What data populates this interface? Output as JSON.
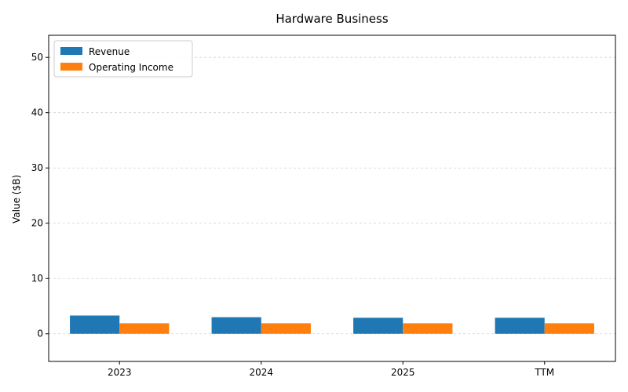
{
  "chart_data": {
    "type": "bar",
    "title": "Hardware Business",
    "xlabel": "",
    "ylabel": "Value ($B)",
    "categories": [
      "2023",
      "2024",
      "2025",
      "TTM"
    ],
    "series": [
      {
        "name": "Revenue",
        "color": "#1f77b4",
        "values": [
          3.3,
          3.0,
          2.9,
          2.9
        ]
      },
      {
        "name": "Operating Income",
        "color": "#ff7f0e",
        "values": [
          1.9,
          1.9,
          1.9,
          1.9
        ]
      }
    ],
    "ylim": [
      -5,
      54
    ],
    "yticks": [
      0,
      10,
      20,
      30,
      40,
      50
    ],
    "grid": "y-dashed",
    "legend_position": "top-left"
  }
}
